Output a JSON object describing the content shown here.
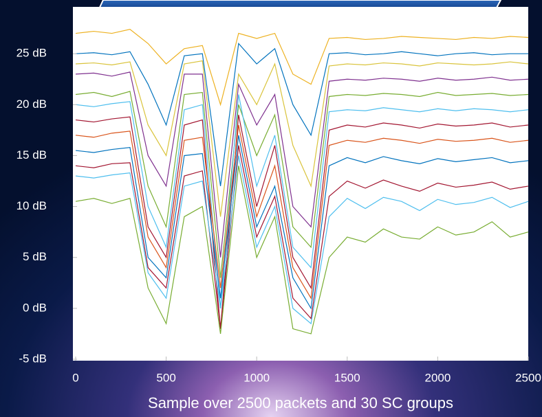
{
  "chart_data": {
    "type": "line",
    "x_label": "Sample over 2500 packets and 30 SC groups",
    "xlim": [
      0,
      2500
    ],
    "xticks": [
      0,
      500,
      1000,
      1500,
      2000,
      2500
    ],
    "ylim": [
      -5,
      29.6
    ],
    "yticks": [
      {
        "value": -5,
        "label": "-5 dB"
      },
      {
        "value": 0,
        "label": "0 dB"
      },
      {
        "value": 5,
        "label": "5 dB"
      },
      {
        "value": 10,
        "label": "10 dB"
      },
      {
        "value": 15,
        "label": "15 dB"
      },
      {
        "value": 20,
        "label": "20 dB"
      },
      {
        "value": 25,
        "label": "25 dB"
      }
    ],
    "grid": false,
    "x": [
      0,
      100,
      200,
      300,
      400,
      500,
      600,
      700,
      800,
      900,
      1000,
      1100,
      1200,
      1300,
      1400,
      1500,
      1600,
      1700,
      1800,
      1900,
      2000,
      2100,
      2200,
      2300,
      2400,
      2500
    ],
    "series": [
      {
        "color": "#edb120",
        "values": [
          27,
          27.2,
          27,
          27.4,
          26,
          24,
          25.5,
          25.8,
          20,
          27,
          26.5,
          27,
          23,
          22,
          26.5,
          26.6,
          26.4,
          26.5,
          26.7,
          26.6,
          26.5,
          26.4,
          26.6,
          26.5,
          26.7,
          26.6
        ]
      },
      {
        "color": "#0072bd",
        "values": [
          25,
          25.1,
          24.9,
          25.2,
          22,
          18,
          24.8,
          25,
          12,
          26,
          24,
          25.5,
          20,
          17,
          25,
          25.1,
          24.9,
          25,
          25.2,
          25,
          24.8,
          25,
          25.1,
          24.9,
          25,
          25
        ]
      },
      {
        "color": "#d9c33a",
        "values": [
          24,
          24.1,
          23.9,
          24.2,
          18,
          15,
          24,
          24.3,
          9,
          23,
          20,
          24,
          16,
          12,
          23.8,
          24,
          23.9,
          24.1,
          24,
          23.8,
          24.1,
          24,
          23.9,
          24,
          24.2,
          24
        ]
      },
      {
        "color": "#7e2f8e",
        "values": [
          23,
          23.1,
          22.8,
          23.2,
          15,
          12,
          23,
          23,
          5,
          22,
          18,
          21,
          10,
          8,
          22.3,
          22.5,
          22.4,
          22.6,
          22.5,
          22.3,
          22.6,
          22.4,
          22.5,
          22.7,
          22.4,
          22.5
        ]
      },
      {
        "color": "#77ac30",
        "values": [
          21,
          21.2,
          20.8,
          21.3,
          12,
          8,
          21,
          21.2,
          3,
          20,
          15,
          19,
          8,
          6,
          20.8,
          21,
          20.9,
          21.1,
          21,
          20.8,
          21.2,
          20.9,
          21,
          21.1,
          20.9,
          21
        ]
      },
      {
        "color": "#4dbeee",
        "values": [
          20,
          19.8,
          20.1,
          20.3,
          10,
          6,
          19.5,
          20,
          0,
          21,
          12,
          17,
          6,
          4,
          19.3,
          19.5,
          19.4,
          19.7,
          19.5,
          19.3,
          19.6,
          19.4,
          19.6,
          19.5,
          19.3,
          19.5
        ]
      },
      {
        "color": "#a2142f",
        "values": [
          18.5,
          18.3,
          18.6,
          18.8,
          8,
          5,
          18,
          18.5,
          -2,
          19,
          10,
          16,
          5,
          2,
          17.5,
          18,
          17.8,
          18.2,
          18,
          17.7,
          18.1,
          17.9,
          18,
          18.2,
          17.8,
          18
        ]
      },
      {
        "color": "#d95319",
        "values": [
          17,
          16.8,
          17.2,
          17.4,
          7,
          4,
          16.5,
          16.8,
          2,
          18,
          9,
          14,
          4,
          1,
          16,
          16.5,
          16.3,
          16.7,
          16.5,
          16.2,
          16.6,
          16.4,
          16.5,
          16.7,
          16.3,
          16.5
        ]
      },
      {
        "color": "#0072bd",
        "values": [
          15.5,
          15.3,
          15.6,
          15.8,
          5,
          3,
          15,
          15.2,
          1,
          17,
          8,
          12,
          3,
          0,
          14,
          14.8,
          14.3,
          14.9,
          14.5,
          14.2,
          14.7,
          14.4,
          14.6,
          14.8,
          14.3,
          14.5
        ]
      },
      {
        "color": "#a2142f",
        "values": [
          14,
          13.8,
          14.2,
          14.3,
          4,
          2,
          13,
          13.5,
          -2,
          16,
          7,
          11,
          1,
          -1,
          11,
          12.5,
          11.8,
          12.6,
          12,
          11.5,
          12.3,
          11.9,
          12.1,
          12.4,
          11.7,
          12
        ]
      },
      {
        "color": "#4dbeee",
        "values": [
          13,
          12.8,
          13.1,
          13.3,
          3.5,
          1,
          12,
          12.5,
          0,
          15,
          6,
          10,
          0,
          -1.5,
          9,
          10.8,
          9.8,
          10.9,
          10.5,
          9.6,
          10.7,
          10.2,
          10.4,
          10.9,
          9.9,
          10.5
        ]
      },
      {
        "color": "#77ac30",
        "values": [
          10.5,
          10.8,
          10.3,
          10.8,
          2,
          -1.5,
          9,
          10,
          -2.5,
          14,
          5,
          9,
          -2,
          -2.5,
          5,
          7,
          6.5,
          7.8,
          7,
          6.8,
          8,
          7.2,
          7.5,
          8.5,
          7,
          7.5
        ]
      }
    ]
  }
}
